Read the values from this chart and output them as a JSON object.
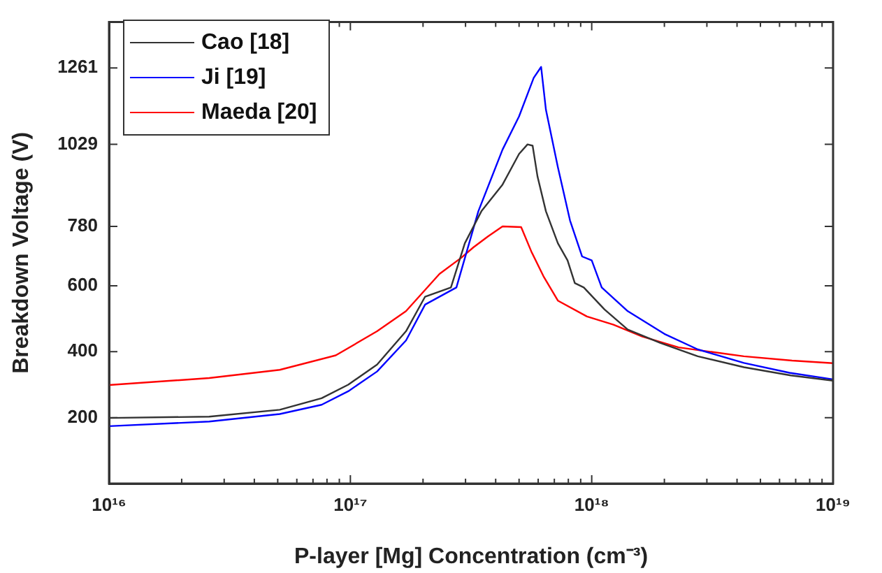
{
  "chart_data": {
    "type": "line",
    "xlabel": "P-layer [Mg] Concentration (cm⁻³)",
    "ylabel": "Breakdown Voltage (V)",
    "log": "x",
    "legend": "top left",
    "xlim": [
      1e+16,
      1e+19
    ],
    "ylim": [
      0,
      1400
    ],
    "xticks": [
      {
        "value": 1e+16,
        "label": "10¹⁶"
      },
      {
        "value": 2e+16,
        "label": null
      },
      {
        "value": 3e+16,
        "label": null
      },
      {
        "value": 4e+16,
        "label": null
      },
      {
        "value": 5e+16,
        "label": null
      },
      {
        "value": 6e+16,
        "label": null
      },
      {
        "value": 7e+16,
        "label": null
      },
      {
        "value": 8e+16,
        "label": null
      },
      {
        "value": 9e+16,
        "label": null
      },
      {
        "value": 1e+17,
        "label": "10¹⁷"
      },
      {
        "value": 2e+17,
        "label": null
      },
      {
        "value": 3e+17,
        "label": null
      },
      {
        "value": 4e+17,
        "label": null
      },
      {
        "value": 5e+17,
        "label": null
      },
      {
        "value": 6e+17,
        "label": null
      },
      {
        "value": 7e+17,
        "label": null
      },
      {
        "value": 8e+17,
        "label": null
      },
      {
        "value": 9e+17,
        "label": null
      },
      {
        "value": 1e+18,
        "label": "10¹⁸"
      },
      {
        "value": 2e+18,
        "label": null
      },
      {
        "value": 3e+18,
        "label": null
      },
      {
        "value": 4e+18,
        "label": null
      },
      {
        "value": 5e+18,
        "label": null
      },
      {
        "value": 6e+18,
        "label": null
      },
      {
        "value": 7e+18,
        "label": null
      },
      {
        "value": 8e+18,
        "label": null
      },
      {
        "value": 9e+18,
        "label": null
      },
      {
        "value": 1e+19,
        "label": "10¹⁹"
      }
    ],
    "yticks": [
      200,
      400,
      600,
      780,
      1029,
      1261
    ],
    "series": [
      {
        "name": "Cao [18]",
        "color": "#333333",
        "x": [
          1e+16,
          2.6e+16,
          5.1e+16,
          7.6e+16,
          9.8e+16,
          1.29e+17,
          1.7e+17,
          2.04e+17,
          2.61e+17,
          2.98e+17,
          3.49e+17,
          4.27e+17,
          5e+17,
          5.42e+17,
          5.69e+17,
          5.96e+17,
          6.46e+17,
          7.24e+17,
          7.94e+17,
          8.51e+17,
          9.27e+17,
          1.13e+18,
          1.41e+18,
          1.92e+18,
          2.75e+18,
          4.27e+18,
          6.68e+18,
          1e+19
        ],
        "values": [
          199,
          203,
          224,
          259,
          300,
          361,
          462,
          567,
          595,
          729,
          826,
          907,
          1000,
          1029,
          1025,
          932,
          826,
          729,
          677,
          608,
          595,
          528,
          467,
          427,
          386,
          353,
          328,
          312
        ]
      },
      {
        "name": "Ji [19]",
        "color": "#0000ff",
        "x": [
          1e+16,
          2.6e+16,
          5.1e+16,
          7.6e+16,
          9.8e+16,
          1.29e+17,
          1.7e+17,
          2.04e+17,
          2.75e+17,
          3.39e+17,
          4.27e+17,
          5e+17,
          5.75e+17,
          6.17e+17,
          6.46e+17,
          7.24e+17,
          8.13e+17,
          9.12e+17,
          1e+18,
          1.1e+18,
          1.41e+18,
          2e+18,
          2.75e+18,
          4.27e+18,
          6.6e+18,
          1e+19
        ],
        "values": [
          174,
          188,
          211,
          239,
          280,
          340,
          434,
          543,
          595,
          826,
          1013,
          1114,
          1231,
          1264,
          1134,
          960,
          798,
          689,
          677,
          595,
          523,
          454,
          407,
          366,
          336,
          316
        ]
      },
      {
        "name": "Maeda [20]",
        "color": "#ff0000",
        "x": [
          1e+16,
          2.6e+16,
          5.1e+16,
          8.7e+16,
          1.29e+17,
          1.7e+17,
          2.34e+17,
          2.88e+17,
          3.24e+17,
          3.72e+17,
          4.27e+17,
          5.1e+17,
          5.62e+17,
          6.31e+17,
          7.24e+17,
          9.55e+17,
          1.23e+18,
          1.62e+18,
          2.29e+18,
          3.02e+18,
          4.27e+18,
          6.76e+18,
          1e+19
        ],
        "values": [
          299,
          320,
          345,
          389,
          462,
          523,
          636,
          685,
          717,
          750,
          780,
          778,
          704,
          629,
          555,
          507,
          482,
          446,
          413,
          401,
          386,
          373,
          365
        ]
      }
    ]
  }
}
